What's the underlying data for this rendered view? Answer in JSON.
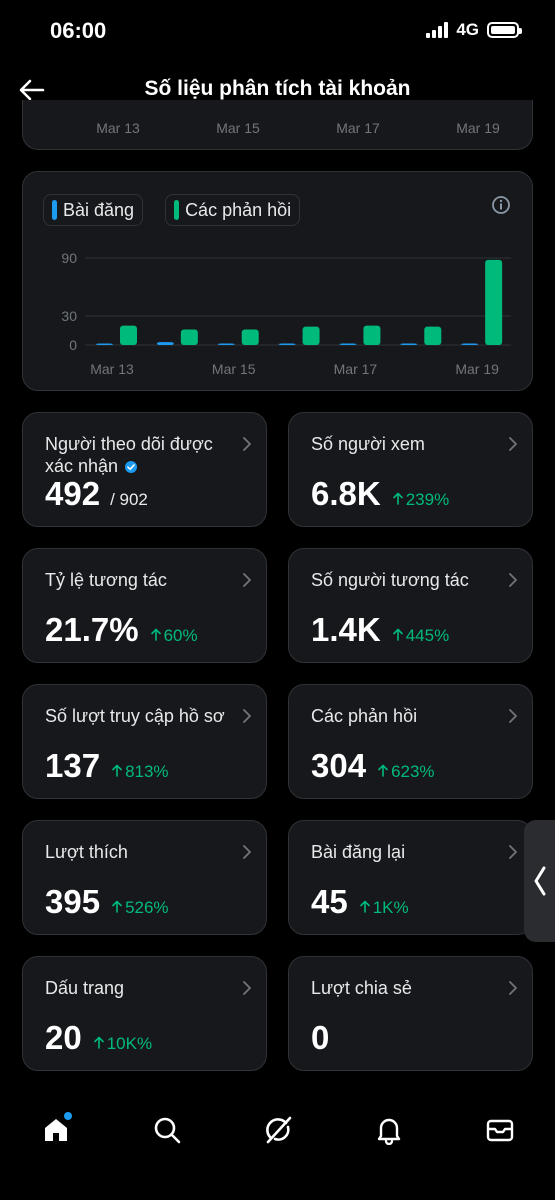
{
  "status_bar": {
    "time": "06:00",
    "network": "4G"
  },
  "header": {
    "title": "Số liệu phân tích tài khoản"
  },
  "top_chart": {
    "x_labels": [
      "Mar 13",
      "Mar 15",
      "Mar 17",
      "Mar 19"
    ]
  },
  "legend": {
    "posts": "Bài đăng",
    "replies": "Các phản hồi"
  },
  "colors": {
    "posts": "#1d9bf0",
    "replies": "#00ba7c",
    "accent_green": "#00ba7c",
    "card_bg": "#16181c",
    "border": "#2f3336"
  },
  "chart_data": {
    "type": "bar",
    "categories": [
      "Mar 13",
      "Mar 14",
      "Mar 15",
      "Mar 16",
      "Mar 17",
      "Mar 18",
      "Mar 19"
    ],
    "x_tick_labels": [
      "Mar 13",
      "Mar 15",
      "Mar 17",
      "Mar 19"
    ],
    "y_ticks": [
      0,
      30,
      90
    ],
    "ylim": [
      0,
      90
    ],
    "series": [
      {
        "name": "Bài đăng",
        "values": [
          1,
          3,
          1,
          0,
          1,
          0,
          1
        ]
      },
      {
        "name": "Các phản hồi",
        "values": [
          20,
          16,
          16,
          19,
          20,
          19,
          88
        ]
      }
    ],
    "legend_position": "top-left",
    "grid": true
  },
  "stats": [
    {
      "label": "Người theo dõi được xác nhận",
      "value": "492",
      "sub": "/ 902",
      "change": "",
      "verified": true
    },
    {
      "label": "Số người xem",
      "value": "6.8K",
      "sub": "",
      "change": "239%"
    },
    {
      "label": "Tỷ lệ tương tác",
      "value": "21.7%",
      "sub": "",
      "change": "60%"
    },
    {
      "label": "Số người tương tác",
      "value": "1.4K",
      "sub": "",
      "change": "445%"
    },
    {
      "label": "Số lượt truy cập hồ sơ",
      "value": "137",
      "sub": "",
      "change": "813%"
    },
    {
      "label": "Các phản hồi",
      "value": "304",
      "sub": "",
      "change": "623%"
    },
    {
      "label": "Lượt thích",
      "value": "395",
      "sub": "",
      "change": "526%"
    },
    {
      "label": "Bài đăng lại",
      "value": "45",
      "sub": "",
      "change": "1K%"
    },
    {
      "label": "Dấu trang",
      "value": "20",
      "sub": "",
      "change": "10K%"
    },
    {
      "label": "Lượt chia sẻ",
      "value": "0",
      "sub": "",
      "change": ""
    }
  ],
  "nav": [
    "home-icon",
    "search-icon",
    "grok-icon",
    "bell-icon",
    "mail-icon"
  ]
}
